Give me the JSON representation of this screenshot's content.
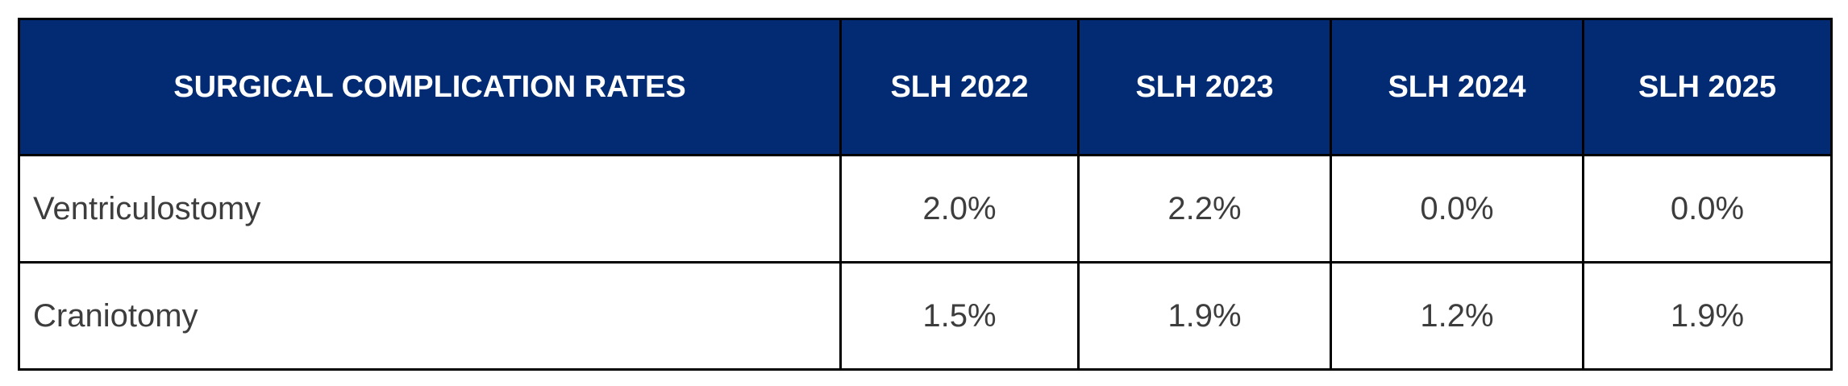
{
  "table": {
    "columns": [
      "SURGICAL COMPLICATION RATES",
      "SLH 2022",
      "SLH 2023",
      "SLH 2024",
      "SLH 2025"
    ],
    "rows": [
      [
        "Ventriculostomy",
        "2.0%",
        "2.2%",
        "0.0%",
        "0.0%"
      ],
      [
        "Craniotomy",
        "1.5%",
        "1.9%",
        "1.2%",
        "1.9%"
      ]
    ]
  }
}
